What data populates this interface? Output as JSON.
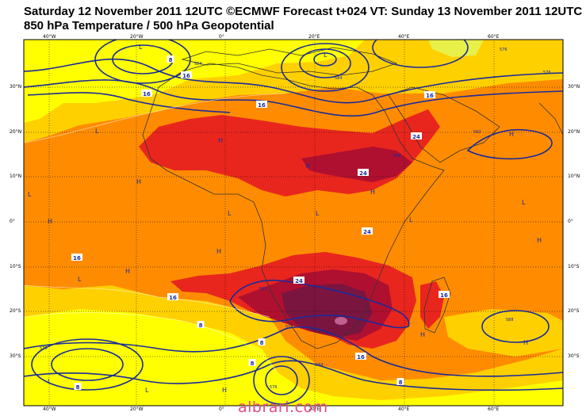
{
  "header": {
    "title_line1": "Saturday 12 November 2011 12UTC ©ECMWF Forecast t+024 VT: Sunday 13 November 2011 12UTC",
    "title_line2": "850 hPa Temperature / 500 hPa Geopotential"
  },
  "lat_labels": [
    "30°N",
    "20°N",
    "10°N",
    "0°",
    "10°S",
    "20°S",
    "30°S"
  ],
  "lon_labels": [
    "40°W",
    "20°W",
    "0°",
    "20°E",
    "40°E",
    "60°E"
  ],
  "pressure_centers": [
    {
      "label": "L"
    },
    {
      "label": "L"
    },
    {
      "label": "H"
    },
    {
      "label": "L"
    },
    {
      "label": "H"
    },
    {
      "label": "L"
    },
    {
      "label": "H"
    },
    {
      "label": "L"
    },
    {
      "label": "L"
    },
    {
      "label": "H"
    },
    {
      "label": "H"
    },
    {
      "label": "H"
    },
    {
      "label": "L"
    },
    {
      "label": "H"
    },
    {
      "label": "H"
    },
    {
      "label": "L"
    },
    {
      "label": "L"
    },
    {
      "label": "H"
    },
    {
      "label": "H"
    },
    {
      "label": "L"
    },
    {
      "label": "L"
    },
    {
      "label": "H"
    },
    {
      "label": "H"
    }
  ],
  "temperature_labels": [
    "8",
    "16",
    "16",
    "16",
    "24",
    "24",
    "24",
    "24",
    "16",
    "16",
    "16",
    "8",
    "8",
    "8",
    "8",
    "8",
    "16",
    "16"
  ],
  "geopotential_labels": [
    "584",
    "576",
    "576",
    "584",
    "592",
    "588",
    "588",
    "592",
    "584",
    "576",
    "576",
    "588"
  ],
  "colors": {
    "ocean_yellow": "#ffff00",
    "light_orange": "#ffd000",
    "orange": "#ff8c00",
    "dark_orange": "#f06010",
    "red": "#e8261e",
    "dark_red": "#b01030",
    "maroon": "#7a1540",
    "pink": "#c06090",
    "contour_blue": "#1a2a9a",
    "coast": "#333333"
  },
  "watermark": "albrari.com"
}
